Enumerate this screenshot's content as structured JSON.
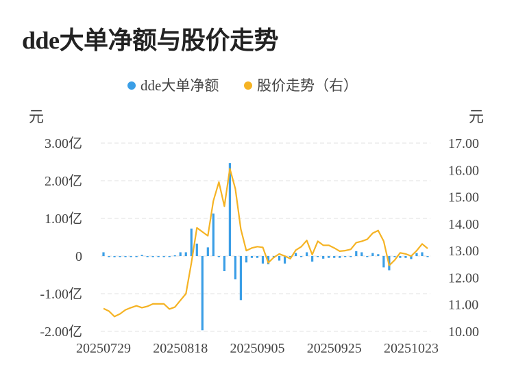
{
  "chart_data": {
    "type": "bar+line",
    "title": "dde大单净额与股价走势",
    "legend": [
      {
        "name": "dde大单净额",
        "color": "#3a9ee6"
      },
      {
        "name": "股价走势（右）",
        "color": "#f5b324"
      }
    ],
    "legend_position": "top-center",
    "y_left": {
      "unit": "元",
      "min": -2.0,
      "max": 3.0,
      "ticks": [
        "3.00亿",
        "2.00亿",
        "1.00亿",
        "0",
        "-1.00亿",
        "-2.00亿"
      ],
      "tick_values": [
        3,
        2,
        1,
        0,
        -1,
        -2
      ]
    },
    "y_right": {
      "unit": "元",
      "min": 10.0,
      "max": 17.0,
      "ticks": [
        "17.00",
        "16.00",
        "15.00",
        "14.00",
        "13.00",
        "12.00",
        "11.00",
        "10.00"
      ],
      "tick_values": [
        17,
        16,
        15,
        14,
        13,
        12,
        11,
        10
      ]
    },
    "x_ticks": [
      {
        "label": "20250729",
        "index": 0
      },
      {
        "label": "20250818",
        "index": 14
      },
      {
        "label": "20250905",
        "index": 28
      },
      {
        "label": "20250925",
        "index": 42
      },
      {
        "label": "20251023",
        "index": 56
      }
    ],
    "grid": true,
    "bar_series": {
      "name": "dde大单净额",
      "unit": "亿",
      "values": [
        0.1,
        -0.02,
        -0.03,
        -0.02,
        -0.02,
        -0.01,
        -0.02,
        0.03,
        -0.02,
        -0.01,
        -0.02,
        -0.01,
        -0.01,
        0.02,
        0.1,
        0.1,
        0.73,
        0.33,
        -1.97,
        0.23,
        1.13,
        0.0,
        -0.4,
        2.47,
        -0.62,
        -1.17,
        -0.17,
        -0.05,
        -0.05,
        -0.2,
        -0.22,
        -0.05,
        -0.12,
        -0.2,
        -0.02,
        0.08,
        0.0,
        0.1,
        -0.15,
        0.0,
        -0.07,
        -0.05,
        -0.05,
        -0.05,
        -0.02,
        0.0,
        0.13,
        0.1,
        0.0,
        0.08,
        0.05,
        -0.3,
        -0.38,
        0.0,
        -0.05,
        -0.05,
        -0.08,
        0.08,
        0.1,
        0.0
      ]
    },
    "line_series": {
      "name": "股价走势（右）",
      "values": [
        10.85,
        10.75,
        10.55,
        10.65,
        10.8,
        10.88,
        10.95,
        10.88,
        10.93,
        11.02,
        11.02,
        11.02,
        10.83,
        10.9,
        11.15,
        11.4,
        12.55,
        13.85,
        13.7,
        13.55,
        14.85,
        15.55,
        14.65,
        16.05,
        15.3,
        13.8,
        13.0,
        13.1,
        13.15,
        13.12,
        12.55,
        12.75,
        12.88,
        12.8,
        12.7,
        13.02,
        13.15,
        13.38,
        12.85,
        13.35,
        13.2,
        13.2,
        13.1,
        12.98,
        13.0,
        13.05,
        13.3,
        13.35,
        13.42,
        13.65,
        13.75,
        13.35,
        12.45,
        12.65,
        12.92,
        12.88,
        12.8,
        13.0,
        13.25,
        13.08
      ]
    }
  }
}
